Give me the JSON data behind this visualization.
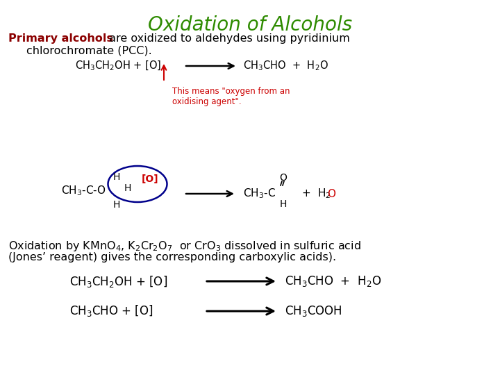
{
  "title": "Oxidation of Alcohols",
  "title_color": "#2E8B00",
  "title_fontsize": 20,
  "background_color": "#ffffff",
  "primary_color": "#8B0000",
  "body_color": "#000000",
  "red_color": "#CC0000",
  "dark_blue": "#00008B",
  "annotation_text": "This means \"oxygen from an\noxidising agent\".",
  "jones_line1": "Oxidation by KMnO$_4$, K$_2$Cr$_2$O$_7$  or CrO$_3$ dissolved in sulfuric acid",
  "jones_line2": "(Jones’ reagent) gives the corresponding carboxylic acids)."
}
